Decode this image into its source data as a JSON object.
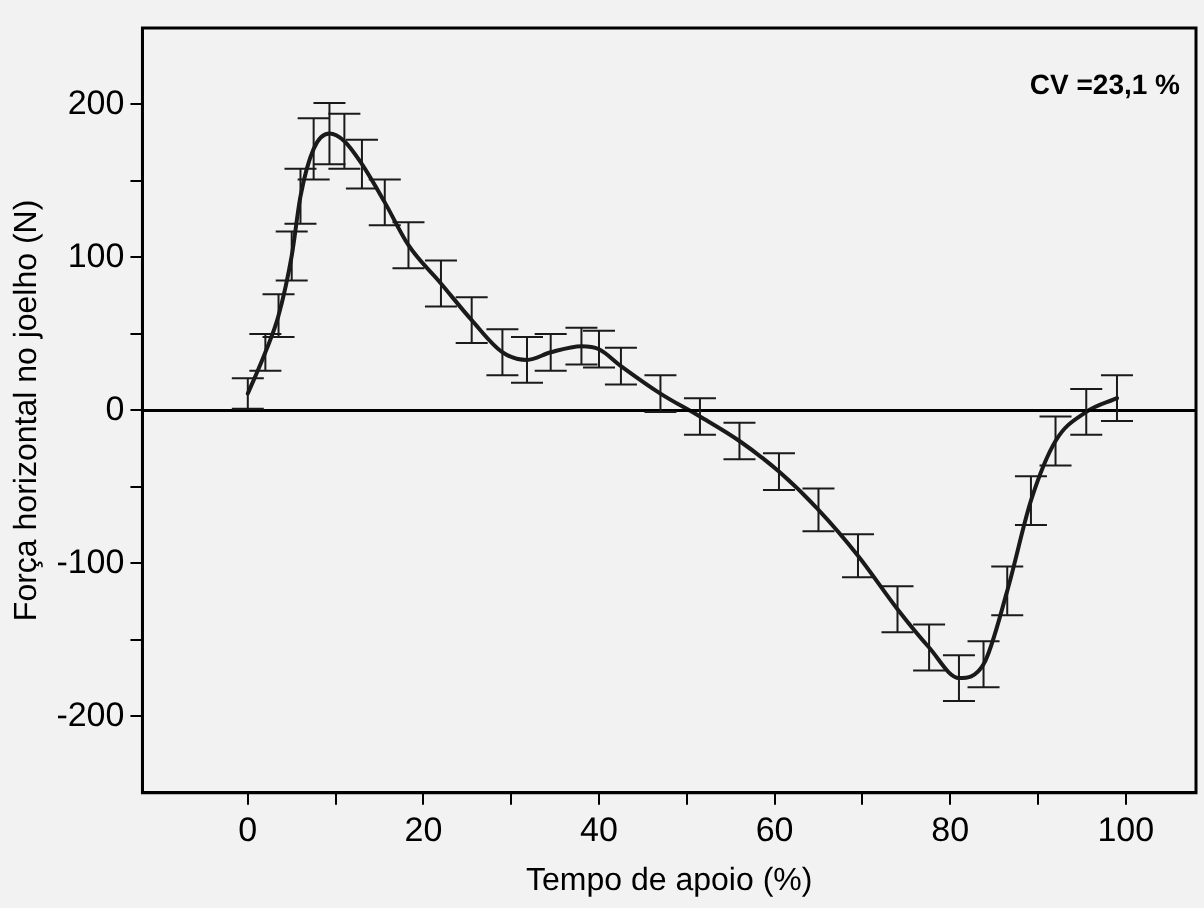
{
  "chart_data": {
    "type": "line",
    "xlabel": "Tempo de apoio (%)",
    "ylabel": "Força horizontal no joelho (N)",
    "annotations": [
      "CV =23,1 %"
    ],
    "xlim": [
      -12,
      108
    ],
    "ylim": [
      -250,
      250
    ],
    "xticks": [
      0,
      {
        "value": 10,
        "label": null
      },
      20,
      {
        "value": 30,
        "label": null
      },
      40,
      {
        "value": 50,
        "label": null
      },
      60,
      {
        "value": 70,
        "label": null
      },
      80,
      {
        "value": 90,
        "label": null
      },
      100
    ],
    "yticks": [
      -200,
      {
        "value": -150,
        "label": null
      },
      -100,
      {
        "value": -50,
        "label": null
      },
      0,
      {
        "value": 50,
        "label": null
      },
      100,
      {
        "value": 150,
        "label": null
      },
      200
    ],
    "ref_lines": [
      {
        "axis": "y",
        "value": 0,
        "color": "#000000"
      }
    ],
    "grid": false,
    "legend": false,
    "marker": "none",
    "line_style": "solid",
    "series": [
      {
        "color": "#1a1a1a",
        "x": [
          0,
          2,
          3.5,
          5,
          6,
          7.5,
          9.3,
          11,
          13,
          15.6,
          18.3,
          22,
          25.5,
          29,
          31.8,
          34.5,
          38,
          40,
          42.5,
          47,
          51.5,
          56,
          60.5,
          65,
          69.5,
          74,
          77.6,
          81,
          83.8,
          86.5,
          89.2,
          92,
          95.5,
          99
        ],
        "values": [
          11,
          38,
          62,
          101,
          140,
          171,
          181,
          176,
          161,
          136,
          108,
          83,
          59,
          38,
          33,
          38,
          42,
          40,
          29,
          11,
          -4,
          -20,
          -40,
          -65,
          -95,
          -130,
          -155,
          -175,
          -166,
          -118,
          -59,
          -20,
          -1,
          8
        ],
        "errors": [
          10,
          12,
          14,
          16,
          18,
          20,
          20,
          18,
          16,
          15,
          15,
          15,
          15,
          15,
          15,
          12,
          12,
          12,
          12,
          12,
          12,
          12,
          12,
          14,
          14,
          15,
          15,
          15,
          15,
          16,
          16,
          16,
          15,
          15
        ]
      }
    ]
  }
}
